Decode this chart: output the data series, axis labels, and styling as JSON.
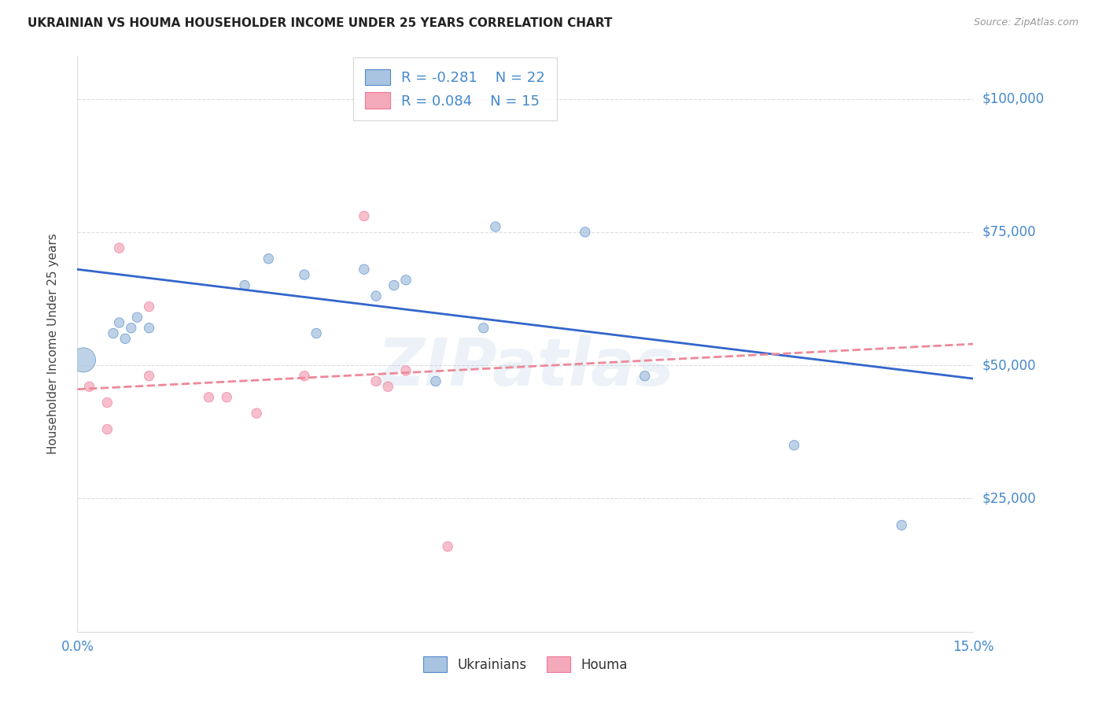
{
  "title": "UKRAINIAN VS HOUMA HOUSEHOLDER INCOME UNDER 25 YEARS CORRELATION CHART",
  "source": "Source: ZipAtlas.com",
  "ylabel": "Householder Income Under 25 years",
  "xmin": 0.0,
  "xmax": 0.15,
  "ymin": 0,
  "ymax": 108000,
  "yticks": [
    0,
    25000,
    50000,
    75000,
    100000
  ],
  "ytick_labels": [
    "",
    "$25,000",
    "$50,000",
    "$75,000",
    "$100,000"
  ],
  "watermark": "ZIPatlas",
  "legend_ukrainian_r": "R = -0.281",
  "legend_ukrainian_n": "N = 22",
  "legend_houma_r": "R = 0.084",
  "legend_houma_n": "N = 15",
  "ukrainian_color": "#A8C4E0",
  "houma_color": "#F4AABB",
  "ukrainian_edge_color": "#5588CC",
  "houma_edge_color": "#EE7799",
  "ukrainian_line_color": "#3366CC",
  "houma_line_color": "#EE8899",
  "title_color": "#222222",
  "right_label_color": "#4488CC",
  "ylabel_color": "#444444",
  "background_color": "#FFFFFF",
  "scatter_alpha": 0.75,
  "ukrainian_x": [
    0.001,
    0.006,
    0.007,
    0.008,
    0.009,
    0.01,
    0.012,
    0.028,
    0.032,
    0.038,
    0.04,
    0.048,
    0.05,
    0.053,
    0.055,
    0.06,
    0.068,
    0.07,
    0.085,
    0.095,
    0.12,
    0.138
  ],
  "ukrainian_y": [
    51000,
    56000,
    58000,
    55000,
    57000,
    59000,
    57000,
    65000,
    70000,
    67000,
    56000,
    68000,
    63000,
    65000,
    66000,
    47000,
    57000,
    76000,
    75000,
    48000,
    35000,
    20000
  ],
  "ukrainian_sizes": [
    500,
    80,
    80,
    80,
    80,
    80,
    80,
    80,
    80,
    80,
    80,
    80,
    80,
    80,
    80,
    80,
    80,
    80,
    80,
    80,
    80,
    80
  ],
  "houma_x": [
    0.002,
    0.005,
    0.005,
    0.007,
    0.012,
    0.012,
    0.022,
    0.025,
    0.03,
    0.038,
    0.048,
    0.05,
    0.052,
    0.055,
    0.062
  ],
  "houma_y": [
    46000,
    43000,
    38000,
    72000,
    61000,
    48000,
    44000,
    44000,
    41000,
    48000,
    78000,
    47000,
    46000,
    49000,
    16000
  ],
  "houma_sizes": [
    80,
    80,
    80,
    80,
    80,
    80,
    80,
    80,
    80,
    80,
    80,
    80,
    80,
    80,
    80
  ],
  "blue_trendline_x": [
    0.0,
    0.15
  ],
  "blue_trendline_y": [
    68000,
    47500
  ],
  "pink_trendline_x": [
    0.0,
    0.15
  ],
  "pink_trendline_y": [
    45500,
    54000
  ],
  "xtick_positions": [
    0.0,
    0.025,
    0.05,
    0.075,
    0.1,
    0.125,
    0.15
  ],
  "xtick_labels": [
    "0.0%",
    "",
    "",
    "",
    "",
    "",
    "15.0%"
  ],
  "grid_color": "#DDDDDD",
  "grid_style": "--",
  "grid_lw": 0.8,
  "watermark_color": "#99BBDD",
  "watermark_alpha": 0.18,
  "watermark_fontsize": 60,
  "trendline_lw": 2.0
}
